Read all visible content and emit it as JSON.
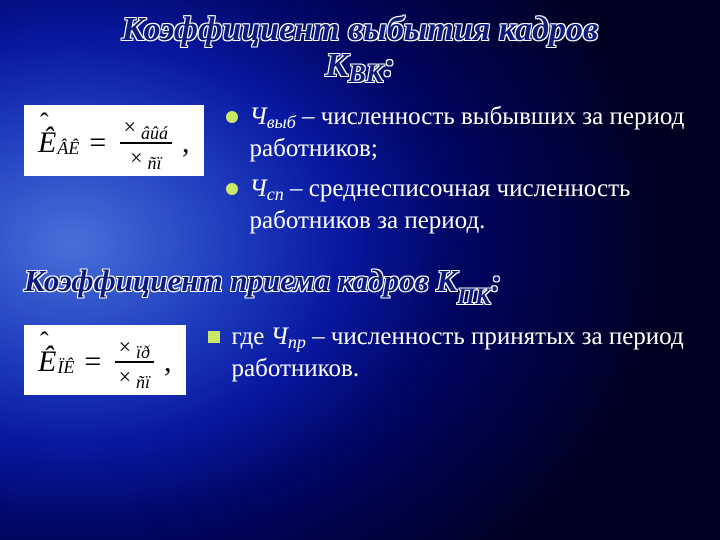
{
  "colors": {
    "bg_center": "#4a6fd8",
    "bg_outer": "#000020",
    "title_fill": "#0c1a7a",
    "title_outline": "#ffffff",
    "text": "#ffffff",
    "formula_bg": "#ffffff",
    "formula_text": "#000000",
    "bullet_marker": "#c9e86a"
  },
  "typography": {
    "family": "Times New Roman",
    "title_size_pt": 26,
    "title_style": "bold italic",
    "body_size_pt": 19,
    "formula_size_pt": 22
  },
  "title1_line1": "Коэффициент выбытия кадров",
  "title1_line2_pre": "К",
  "title1_line2_sub": "ВК",
  "title1_line2_post": ":",
  "formula1": {
    "type": "equation",
    "left_main": "Ê",
    "left_sub": "ÂÊ",
    "numerator_x": "×",
    "numerator_sym": "âûá",
    "denominator_x": "×",
    "denominator_sym": "ñï",
    "trailing": ","
  },
  "bullets1": [
    {
      "marker": "circle",
      "sym": "Ч",
      "sub": "выб",
      "rest": " – численность выбывших за период работников;"
    },
    {
      "marker": "circle",
      "sym": "Ч",
      "sub": "сп",
      "rest": " – среднесписочная численность работников за период."
    }
  ],
  "title2_pre": "Коэффициент приема кадров К",
  "title2_sub": "ПК",
  "title2_post": ":",
  "formula2": {
    "type": "equation",
    "left_main": "Ê",
    "left_sub": "ÏÊ",
    "numerator_x": "×",
    "numerator_sym": "ïð",
    "denominator_x": "×",
    "denominator_sym": "ñï",
    "trailing": ","
  },
  "bullets2": [
    {
      "marker": "square",
      "lead": "где ",
      "sym": "Ч",
      "sub": "пр",
      "rest": " – численность принятых за период работников."
    }
  ]
}
